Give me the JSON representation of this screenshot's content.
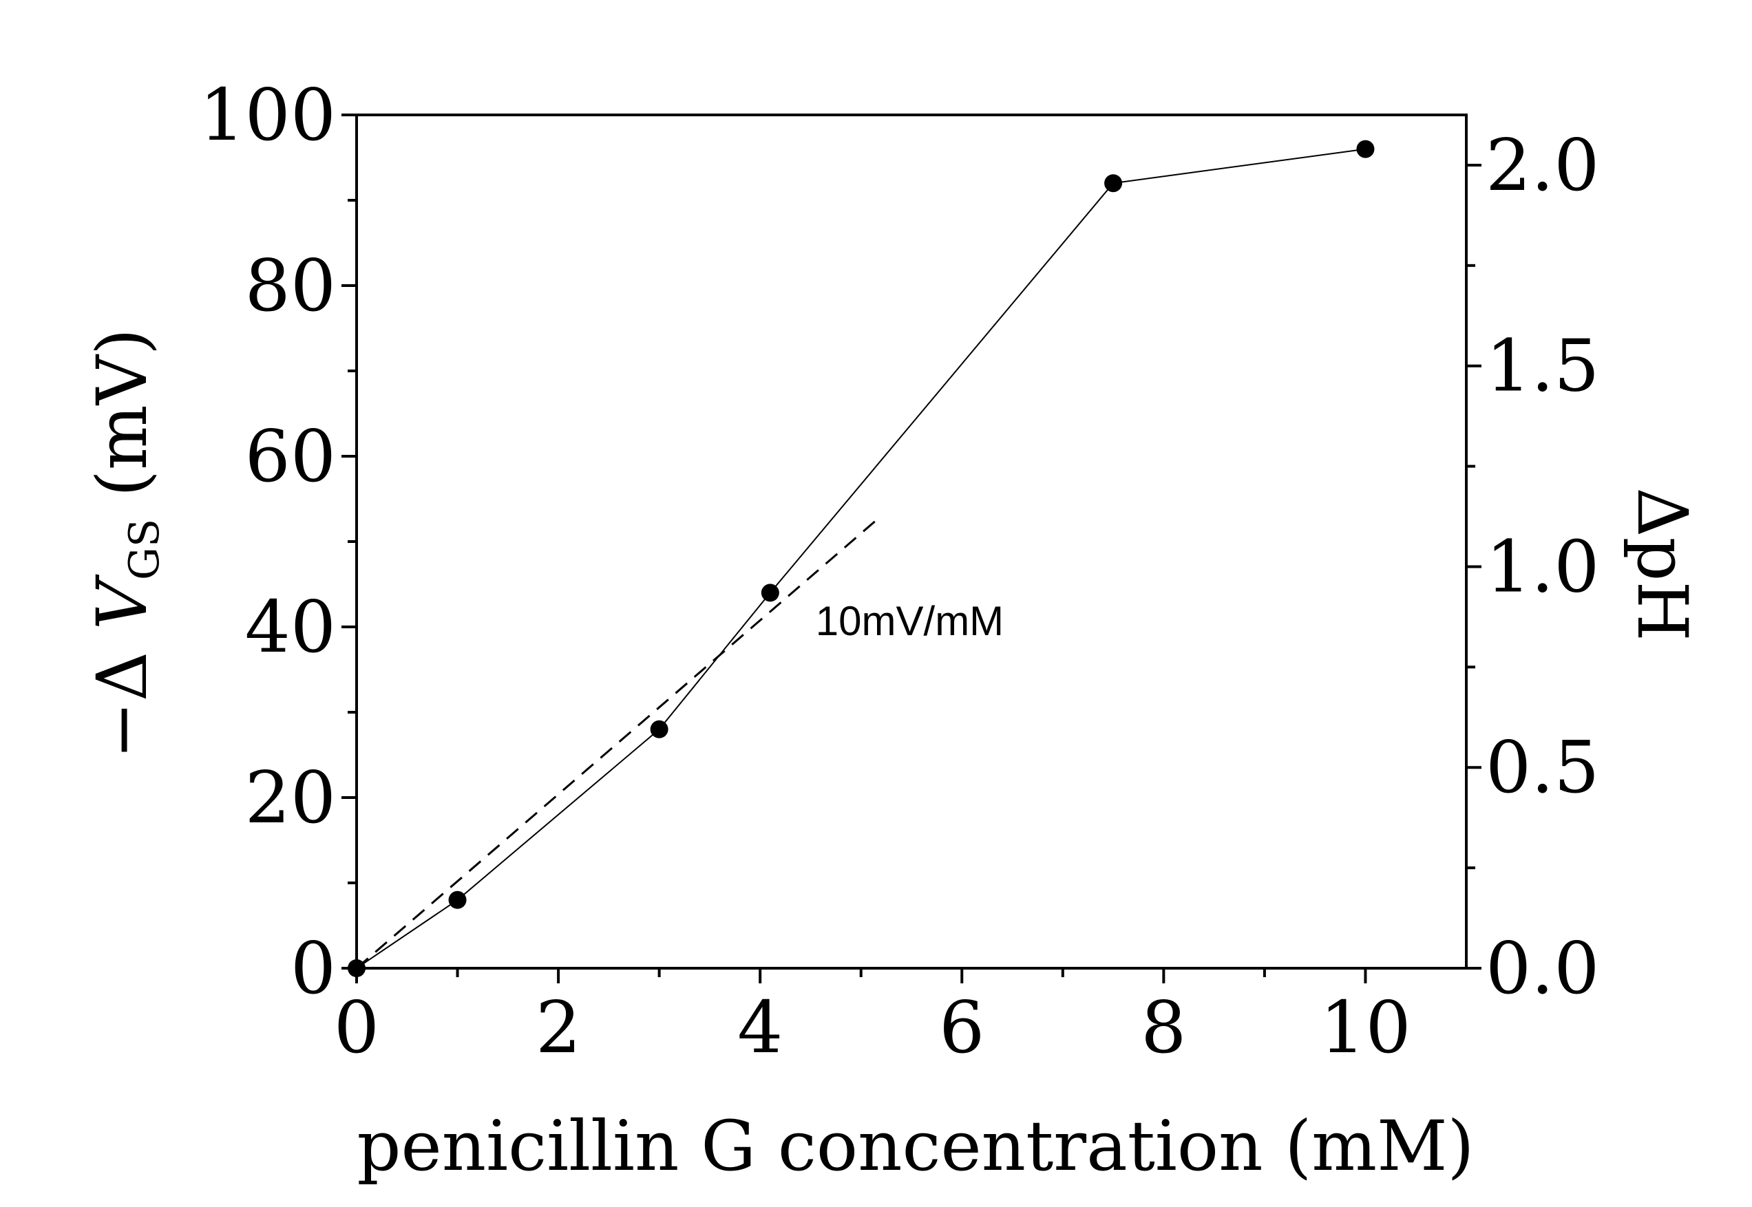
{
  "chart_data": {
    "type": "line",
    "xlabel": "penicillin G concentration (mM)",
    "ylabel": {
      "prefix": "−Δ ",
      "symbol": "V",
      "subscript": "GS",
      "suffix": " (mV)"
    },
    "ylabel_right": "ΔpH",
    "xlim": [
      0,
      11
    ],
    "ylim": [
      0,
      100
    ],
    "ylim_right": [
      0,
      2.125
    ],
    "xticks": [
      0,
      2,
      4,
      6,
      8,
      10
    ],
    "xtick_labels": [
      "0",
      "2",
      "4",
      "6",
      "8",
      "10"
    ],
    "yticks": [
      0,
      20,
      40,
      60,
      80,
      100
    ],
    "ytick_labels": [
      "0",
      "20",
      "40",
      "60",
      "80",
      "100"
    ],
    "yticks_right": [
      0,
      0.5,
      1.0,
      1.5,
      2.0
    ],
    "ytick_labels_right": [
      "0.0",
      "0.5",
      "1.0",
      "1.5",
      "2.0"
    ],
    "grid": false,
    "series": [
      {
        "x": [
          0,
          1,
          3,
          4.1,
          7.5,
          10
        ],
        "y": [
          0,
          8,
          28,
          44,
          92,
          96
        ],
        "marker": "circle",
        "line": "solid",
        "color": "#000000"
      }
    ],
    "fit_line": {
      "x": [
        0,
        5.2
      ],
      "y": [
        0,
        53
      ],
      "style": "dashed",
      "color": "#000000"
    },
    "annotations": [
      {
        "text": "10mV/mM",
        "x": 4.55,
        "y": 40
      }
    ]
  }
}
